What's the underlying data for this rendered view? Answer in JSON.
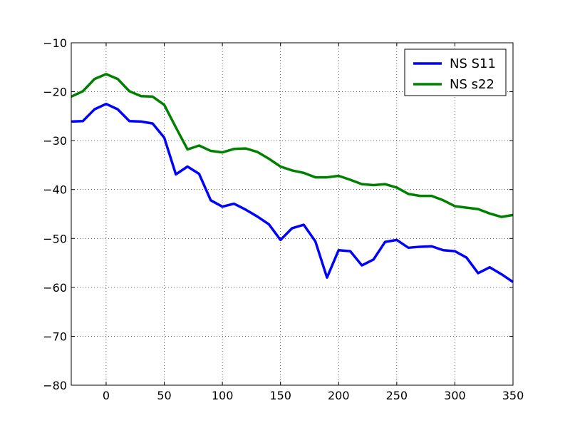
{
  "chart_data": {
    "type": "line",
    "title": "",
    "xlabel": "",
    "ylabel": "",
    "xlim": [
      -30,
      350
    ],
    "ylim": [
      -80,
      -10
    ],
    "xticks": [
      0,
      50,
      100,
      150,
      200,
      250,
      300,
      350
    ],
    "yticks": [
      -80,
      -70,
      -60,
      -50,
      -40,
      -30,
      -20,
      -10
    ],
    "xtick_labels": [
      "0",
      "50",
      "100",
      "150",
      "200",
      "250",
      "300",
      "350"
    ],
    "ytick_labels": [
      "−80",
      "−70",
      "−60",
      "−50",
      "−40",
      "−30",
      "−20",
      "−10"
    ],
    "grid": true,
    "legend_position": "top-right",
    "x": [
      -30,
      -20,
      -10,
      0,
      10,
      20,
      30,
      40,
      50,
      60,
      70,
      80,
      90,
      100,
      110,
      120,
      130,
      140,
      150,
      160,
      170,
      180,
      190,
      200,
      210,
      220,
      230,
      240,
      250,
      260,
      270,
      280,
      290,
      300,
      310,
      320,
      330,
      340,
      350
    ],
    "series": [
      {
        "name": "NS S11",
        "color": "#0000ff",
        "values": [
          -26.1,
          -26.0,
          -23.6,
          -22.5,
          -23.6,
          -26.0,
          -26.1,
          -26.5,
          -29.4,
          -36.9,
          -35.3,
          -36.8,
          -42.2,
          -43.5,
          -42.9,
          -44.1,
          -45.5,
          -47.1,
          -50.3,
          -47.9,
          -47.2,
          -50.6,
          -58.0,
          -52.4,
          -52.6,
          -55.5,
          -54.3,
          -50.7,
          -50.3,
          -51.9,
          -51.7,
          -51.6,
          -52.4,
          -52.6,
          -53.9,
          -57.1,
          -55.9,
          -57.3,
          -58.9
        ]
      },
      {
        "name": "NS s22",
        "color": "#008000",
        "values": [
          -21.0,
          -19.9,
          -17.4,
          -16.4,
          -17.4,
          -19.9,
          -20.9,
          -21.0,
          -22.7,
          -27.3,
          -31.8,
          -31.0,
          -32.1,
          -32.4,
          -31.7,
          -31.6,
          -32.3,
          -33.7,
          -35.3,
          -36.1,
          -36.6,
          -37.5,
          -37.5,
          -37.2,
          -38.0,
          -38.9,
          -39.1,
          -38.9,
          -39.6,
          -40.9,
          -41.3,
          -41.3,
          -42.2,
          -43.4,
          -43.7,
          -44.0,
          -44.9,
          -45.6,
          -45.2
        ]
      }
    ]
  }
}
